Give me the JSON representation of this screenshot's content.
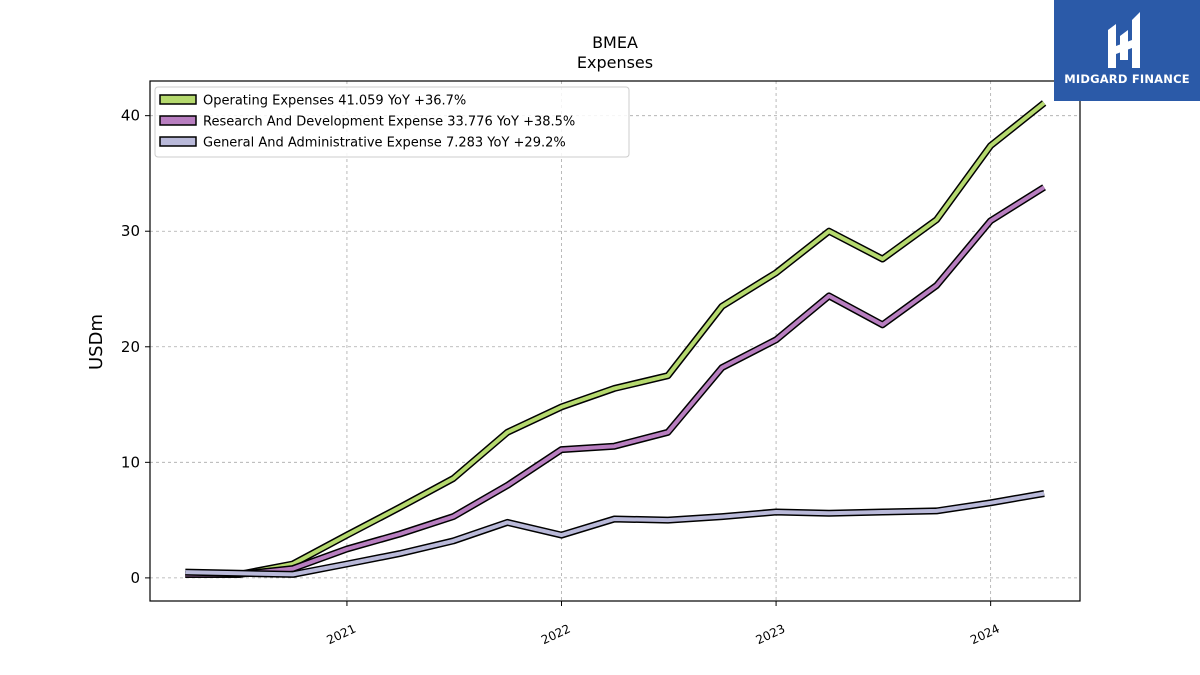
{
  "header": {
    "ticker": "BMEA",
    "subtitle": "Expenses"
  },
  "brand": {
    "name": "MIDGARD FINANCE",
    "logo_icon": "midgard-logo-icon",
    "color": "#2b5aa8"
  },
  "chart_data": {
    "type": "line",
    "title": "BMEA",
    "subtitle": "Expenses",
    "xlabel": "",
    "ylabel": "USDm",
    "x": [
      "2020-04-01",
      "2020-07-01",
      "2020-10-01",
      "2021-01-01",
      "2021-04-01",
      "2021-07-01",
      "2021-10-01",
      "2022-01-01",
      "2022-04-01",
      "2022-07-01",
      "2022-10-01",
      "2023-01-01",
      "2023-04-01",
      "2023-07-01",
      "2023-10-01",
      "2024-01-01",
      "2024-04-01"
    ],
    "xlim": [
      "2020-02-01",
      "2024-06-01"
    ],
    "ylim": [
      -2,
      43
    ],
    "x_ticks": [
      "2021",
      "2022",
      "2023",
      "2024"
    ],
    "y_ticks": [
      0,
      10,
      20,
      30,
      40
    ],
    "grid": true,
    "legend_position": "top-left",
    "series": [
      {
        "name": "Operating Expenses",
        "legend": "Operating Expenses  41.059 YoY +36.7%",
        "color": "#b5d96e",
        "values": [
          0.3,
          0.3,
          1.2,
          3.7,
          6.1,
          8.6,
          12.6,
          14.8,
          16.4,
          17.5,
          23.5,
          26.4,
          30.0,
          27.6,
          31.0,
          37.4,
          41.1
        ]
      },
      {
        "name": "Research And Development Expense",
        "legend": "Research And Development Expense  33.776 YoY +38.5%",
        "color": "#b87ec0",
        "values": [
          0.3,
          0.3,
          0.8,
          2.5,
          3.8,
          5.3,
          8.0,
          11.1,
          11.4,
          12.6,
          18.2,
          20.6,
          24.4,
          21.9,
          25.3,
          30.9,
          33.8
        ]
      },
      {
        "name": "General And Administrative Expense",
        "legend": "General And Administrative Expense  7.283 YoY +29.2%",
        "color": "#b9b9d9",
        "values": [
          0.5,
          0.4,
          0.3,
          1.2,
          2.1,
          3.2,
          4.8,
          3.7,
          5.1,
          5.0,
          5.3,
          5.7,
          5.6,
          5.7,
          5.8,
          6.5,
          7.3
        ]
      }
    ]
  }
}
